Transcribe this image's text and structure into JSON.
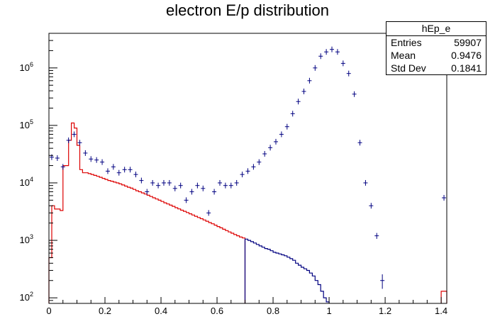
{
  "chart_data": {
    "type": "histogram",
    "title": "electron E/p distribution",
    "xlabel": "",
    "ylabel": "",
    "xlim": [
      0,
      1.42
    ],
    "ylim": [
      80,
      4000000
    ],
    "y_scale": "log",
    "x_ticks": [
      "0",
      "0.2",
      "0.4",
      "0.6",
      "0.8",
      "1",
      "1.2",
      "1.4"
    ],
    "y_ticks": [
      {
        "base": "10",
        "exp": "2",
        "value": 100
      },
      {
        "base": "10",
        "exp": "3",
        "value": 1000
      },
      {
        "base": "10",
        "exp": "4",
        "value": 10000
      },
      {
        "base": "10",
        "exp": "5",
        "value": 100000
      },
      {
        "base": "10",
        "exp": "6",
        "value": 1000000
      }
    ],
    "stats_box": {
      "name": "hEp_e",
      "rows": [
        {
          "label": "Entries",
          "value": "59907"
        },
        {
          "label": "Mean",
          "value": "0.9476"
        },
        {
          "label": "Std Dev",
          "value": "0.1841"
        }
      ]
    },
    "series": [
      {
        "style": "markers-with-error-bars",
        "color": "#000080",
        "x": [
          0.01,
          0.03,
          0.05,
          0.07,
          0.09,
          0.11,
          0.13,
          0.15,
          0.17,
          0.19,
          0.21,
          0.23,
          0.25,
          0.27,
          0.29,
          0.31,
          0.33,
          0.35,
          0.37,
          0.39,
          0.41,
          0.43,
          0.45,
          0.47,
          0.49,
          0.51,
          0.53,
          0.55,
          0.57,
          0.59,
          0.61,
          0.63,
          0.65,
          0.67,
          0.69,
          0.71,
          0.73,
          0.75,
          0.77,
          0.79,
          0.81,
          0.83,
          0.85,
          0.87,
          0.89,
          0.91,
          0.93,
          0.95,
          0.97,
          0.99,
          1.01,
          1.03,
          1.05,
          1.07,
          1.09,
          1.11,
          1.13,
          1.15,
          1.17,
          1.19,
          1.41
        ],
        "y": [
          28000,
          27000,
          19000,
          55000,
          70000,
          50000,
          33000,
          26000,
          25000,
          23000,
          16000,
          19000,
          15000,
          17000,
          17000,
          14000,
          11000,
          7000,
          10000,
          9000,
          10000,
          10000,
          8000,
          9000,
          5000,
          7000,
          9000,
          8000,
          3000,
          7000,
          10000,
          9000,
          9000,
          10000,
          14000,
          16000,
          19000,
          23000,
          32000,
          41000,
          52000,
          70000,
          95000,
          160000,
          260000,
          390000,
          600000,
          1000000,
          1600000,
          1900000,
          2100000,
          1900000,
          1200000,
          800000,
          350000,
          50000,
          10000,
          4000,
          1200,
          200,
          5500
        ]
      },
      {
        "style": "step-line",
        "color": "#dd0000",
        "bin_edges": [
          0,
          0.01,
          0.02,
          0.04,
          0.05,
          0.06,
          0.07,
          0.08,
          0.09,
          0.1,
          0.11,
          0.12,
          0.13,
          0.14,
          0.15,
          0.16,
          0.17,
          0.18,
          0.19,
          0.2,
          0.21,
          0.22,
          0.23,
          0.24,
          0.25,
          0.26,
          0.27,
          0.28,
          0.29,
          0.3,
          0.31,
          0.32,
          0.33,
          0.34,
          0.35,
          0.36,
          0.37,
          0.38,
          0.39,
          0.4,
          0.41,
          0.42,
          0.43,
          0.44,
          0.45,
          0.46,
          0.47,
          0.48,
          0.49,
          0.5,
          0.51,
          0.52,
          0.53,
          0.54,
          0.55,
          0.56,
          0.57,
          0.58,
          0.59,
          0.6,
          0.61,
          0.62,
          0.63,
          0.64,
          0.65,
          0.66,
          0.67,
          0.68,
          0.69,
          0.7
        ],
        "values": [
          500,
          4000,
          3500,
          3300,
          20000,
          20000,
          55000,
          110000,
          90000,
          45000,
          17000,
          15000,
          15000,
          14500,
          14000,
          13500,
          13000,
          12500,
          12000,
          11500,
          11000,
          10700,
          10300,
          10000,
          9600,
          9200,
          8800,
          8400,
          8100,
          7700,
          7300,
          7000,
          6700,
          6400,
          6100,
          5800,
          5500,
          5250,
          5000,
          4750,
          4500,
          4300,
          4100,
          3900,
          3700,
          3520,
          3350,
          3200,
          3050,
          2900,
          2760,
          2620,
          2500,
          2380,
          2260,
          2150,
          2040,
          1940,
          1840,
          1740,
          1650,
          1560,
          1480,
          1400,
          1330,
          1260,
          1200,
          1140,
          1100
        ]
      },
      {
        "style": "step-line",
        "color": "#000080",
        "bin_edges": [
          0.7,
          0.71,
          0.72,
          0.73,
          0.74,
          0.75,
          0.76,
          0.77,
          0.78,
          0.79,
          0.8,
          0.81,
          0.82,
          0.83,
          0.84,
          0.85,
          0.86,
          0.87,
          0.88,
          0.89,
          0.9,
          0.91,
          0.92,
          0.93,
          0.94,
          0.95,
          0.96,
          0.97,
          0.98,
          0.99,
          1.0
        ],
        "values": [
          1050,
          1000,
          950,
          900,
          850,
          800,
          760,
          720,
          700,
          660,
          620,
          600,
          580,
          560,
          540,
          510,
          480,
          450,
          400,
          370,
          340,
          320,
          300,
          270,
          240,
          200,
          170,
          130,
          100,
          85
        ]
      },
      {
        "style": "step-line",
        "color": "#dd0000",
        "bin_edges": [
          1.4,
          1.42
        ],
        "values": [
          130
        ]
      }
    ]
  }
}
